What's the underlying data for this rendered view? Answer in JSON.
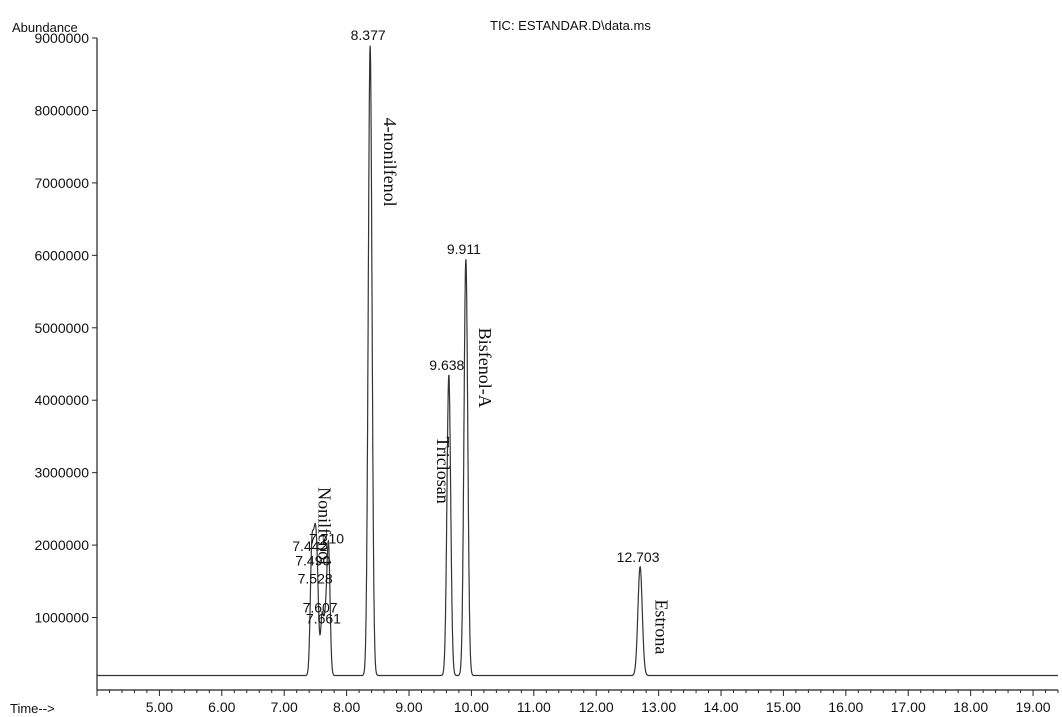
{
  "chart_data": {
    "type": "line",
    "title": "TIC: ESTANDAR.D\\data.ms",
    "ylabel": "Abundance",
    "xlabel": "Time-->",
    "xlim": [
      4.0,
      19.4
    ],
    "ylim": [
      0,
      9000000
    ],
    "grid": false,
    "x_ticks": [
      5,
      6,
      7,
      8,
      9,
      10,
      11,
      12,
      13,
      14,
      15,
      16,
      17,
      18,
      19
    ],
    "x_tick_labels": [
      "5.00",
      "6.00",
      "7.00",
      "8.00",
      "9.00",
      "10.00",
      "11.00",
      "12.00",
      "13.00",
      "14.00",
      "15.00",
      "16.00",
      "17.00",
      "18.00",
      "19.00"
    ],
    "y_ticks": [
      1000000,
      2000000,
      3000000,
      4000000,
      5000000,
      6000000,
      7000000,
      8000000,
      9000000
    ],
    "y_tick_labels": [
      "1000000",
      "2000000",
      "3000000",
      "4000000",
      "5000000",
      "6000000",
      "7000000",
      "8000000",
      "9000000"
    ],
    "baseline": 200000,
    "peaks": [
      {
        "rt": 7.442,
        "label": "7.442",
        "height": 1850000,
        "width": 0.025
      },
      {
        "rt": 7.49,
        "label": "7.490",
        "height": 1650000,
        "width": 0.025
      },
      {
        "rt": 7.528,
        "label": "7.528",
        "height": 1400000,
        "width": 0.025
      },
      {
        "rt": 7.607,
        "label": "7.607",
        "height": 1000000,
        "width": 0.025
      },
      {
        "rt": 7.661,
        "label": "7.661",
        "height": 850000,
        "width": 0.025
      },
      {
        "rt": 7.71,
        "label": "7.710",
        "height": 1950000,
        "width": 0.025
      },
      {
        "rt": 8.377,
        "label": "8.377",
        "height": 8900000,
        "width": 0.03
      },
      {
        "rt": 9.638,
        "label": "9.638",
        "height": 4350000,
        "width": 0.03
      },
      {
        "rt": 9.911,
        "label": "9.911",
        "height": 5950000,
        "width": 0.03
      },
      {
        "rt": 12.703,
        "label": "12.703",
        "height": 1700000,
        "width": 0.035
      }
    ],
    "annotations": [
      {
        "text": "Nonilfenol",
        "x": 7.55,
        "y": 2800000
      },
      {
        "text": "4-nonilfenol",
        "x": 8.6,
        "y": 7900000
      },
      {
        "text": "Triclosan",
        "x": 9.45,
        "y": 3500000
      },
      {
        "text": "Bisfenol-A",
        "x": 10.12,
        "y": 5000000
      },
      {
        "text": "Estrona",
        "x": 12.95,
        "y": 1250000
      }
    ],
    "colors": {
      "trace": "#333333",
      "axis": "#222222",
      "text": "#111111"
    }
  }
}
